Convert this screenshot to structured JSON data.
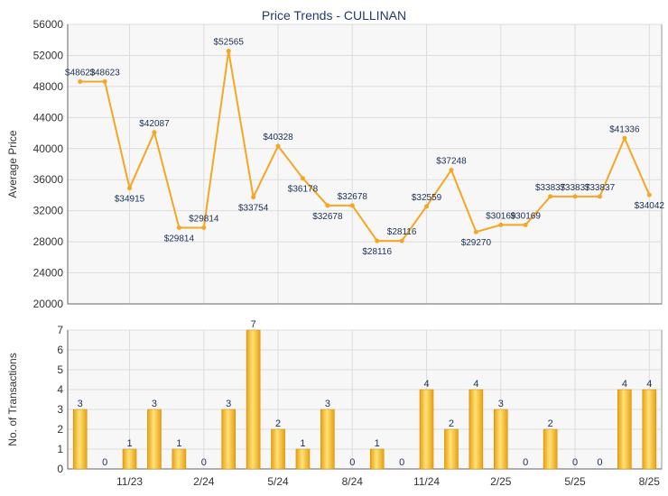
{
  "colors": {
    "line": "#f5a623",
    "bar_light": "#ffe27a",
    "bar_dark": "#e8a010",
    "grid": "#dcdcdc",
    "plot_bg": "#f7f7f7",
    "axis_text": "#333333",
    "title_text": "#1f3a6e",
    "label_text": "#1a2f55"
  },
  "chart_data": [
    {
      "type": "line",
      "title": "Price Trends - CULLINAN",
      "ylabel": "Average Price",
      "xlabel": "",
      "ylim": [
        20000,
        56000
      ],
      "yticks": [
        20000,
        24000,
        28000,
        32000,
        36000,
        40000,
        44000,
        48000,
        52000,
        56000
      ],
      "grid": true,
      "x_ticks": [
        {
          "index": 2,
          "label": "11/23"
        },
        {
          "index": 5,
          "label": "2/24"
        },
        {
          "index": 8,
          "label": "5/24"
        },
        {
          "index": 11,
          "label": "8/24"
        },
        {
          "index": 14,
          "label": "11/24"
        },
        {
          "index": 17,
          "label": "2/25"
        },
        {
          "index": 20,
          "label": "5/25"
        },
        {
          "index": 23,
          "label": "8/25"
        }
      ],
      "values": [
        48623,
        48623,
        34915,
        42087,
        29814,
        29814,
        52565,
        33754,
        40328,
        36178,
        32678,
        32678,
        28116,
        28116,
        32559,
        37248,
        29270,
        30169,
        30169,
        33837,
        33837,
        33837,
        41336,
        34042
      ],
      "labels": [
        "$48623",
        "$48623",
        "$34915",
        "$42087",
        "$29814",
        "$29814",
        "$52565",
        "$33754",
        "$40328",
        "$36178",
        "$32678",
        "$32678",
        "$28116",
        "$28116",
        "$32559",
        "$37248",
        "$29270",
        "$30169",
        "$30169",
        "$33837",
        "$33837",
        "$33837",
        "$41336",
        "$34042"
      ]
    },
    {
      "type": "bar",
      "ylabel": "No. of Transactions",
      "xlabel": "",
      "ylim": [
        0,
        7
      ],
      "yticks": [
        0,
        1,
        2,
        3,
        4,
        5,
        6,
        7
      ],
      "grid": true,
      "x_ticks": [
        {
          "index": 2,
          "label": "11/23"
        },
        {
          "index": 5,
          "label": "2/24"
        },
        {
          "index": 8,
          "label": "5/24"
        },
        {
          "index": 11,
          "label": "8/24"
        },
        {
          "index": 14,
          "label": "11/24"
        },
        {
          "index": 17,
          "label": "2/25"
        },
        {
          "index": 20,
          "label": "5/25"
        },
        {
          "index": 23,
          "label": "8/25"
        }
      ],
      "values": [
        3,
        0,
        1,
        3,
        1,
        0,
        3,
        7,
        2,
        1,
        3,
        0,
        1,
        0,
        4,
        2,
        4,
        3,
        0,
        2,
        0,
        0,
        4,
        4
      ]
    }
  ]
}
